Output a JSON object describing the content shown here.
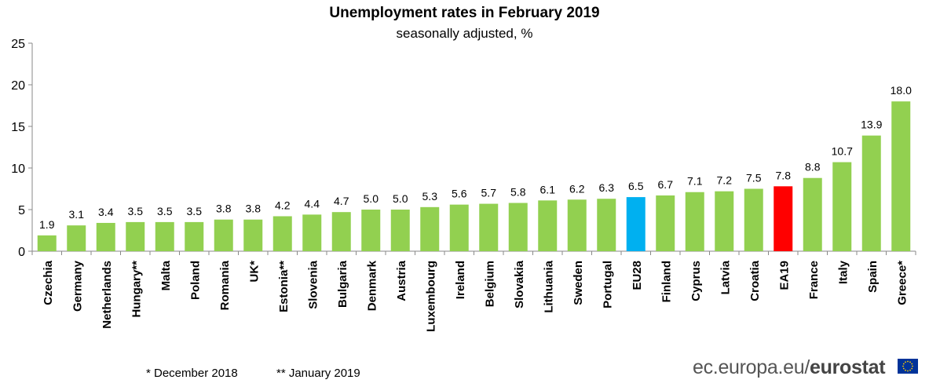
{
  "chart_data": {
    "type": "bar",
    "title": "Unemployment rates in February 2019",
    "subtitle": "seasonally adjusted, %",
    "xlabel": "",
    "ylabel": "",
    "ylim": [
      0,
      25
    ],
    "yticks": [
      0,
      5,
      10,
      15,
      20,
      25
    ],
    "grid": false,
    "categories": [
      "Czechia",
      "Germany",
      "Netherlands",
      "Hungary**",
      "Malta",
      "Poland",
      "Romania",
      "UK*",
      "Estonia**",
      "Slovenia",
      "Bulgaria",
      "Denmark",
      "Austria",
      "Luxembourg",
      "Ireland",
      "Belgium",
      "Slovakia",
      "Lithuania",
      "Sweden",
      "Portugal",
      "EU28",
      "Finland",
      "Cyprus",
      "Latvia",
      "Croatia",
      "EA19",
      "France",
      "Italy",
      "Spain",
      "Greece*"
    ],
    "values": [
      1.9,
      3.1,
      3.4,
      3.5,
      3.5,
      3.5,
      3.8,
      3.8,
      4.2,
      4.4,
      4.7,
      5.0,
      5.0,
      5.3,
      5.6,
      5.7,
      5.8,
      6.1,
      6.2,
      6.3,
      6.5,
      6.7,
      7.1,
      7.2,
      7.5,
      7.8,
      8.8,
      10.7,
      13.9,
      18.0
    ],
    "value_labels": [
      "1.9",
      "3.1",
      "3.4",
      "3.5",
      "3.5",
      "3.5",
      "3.8",
      "3.8",
      "4.2",
      "4.4",
      "4.7",
      "5.0",
      "5.0",
      "5.3",
      "5.6",
      "5.7",
      "5.8",
      "6.1",
      "6.2",
      "6.3",
      "6.5",
      "6.7",
      "7.1",
      "7.2",
      "7.5",
      "7.8",
      "8.8",
      "10.7",
      "13.9",
      "18.0"
    ],
    "colors": {
      "default": "#92d050",
      "EU28": "#00b0f0",
      "EA19": "#ff0000"
    }
  },
  "footnotes": {
    "december": "*  December 2018",
    "january": "** January 2019"
  },
  "branding": {
    "site": "ec.europa.eu",
    "separator": "/",
    "name": "eurostat",
    "flag_color": "#003399",
    "star_color": "#ffcc00"
  }
}
